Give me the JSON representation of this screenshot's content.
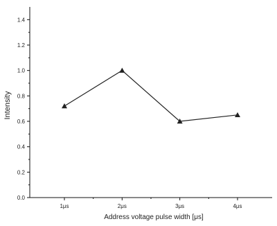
{
  "chart_data": {
    "type": "line",
    "title": "",
    "xlabel": "Address voltage pulse width [μs]",
    "ylabel": "Intensity",
    "categories": [
      "1μs",
      "2μs",
      "3μs",
      "4μs"
    ],
    "ylim": [
      0.0,
      1.5
    ],
    "yticks": [
      "0.0",
      "0.2",
      "0.4",
      "0.6",
      "0.8",
      "1.0",
      "1.2",
      "1.4"
    ],
    "series": [
      {
        "values": [
          0.72,
          1.0,
          0.6,
          0.65
        ],
        "marker": "triangle",
        "color": "#222222"
      }
    ],
    "grid": false,
    "legend": "none"
  }
}
